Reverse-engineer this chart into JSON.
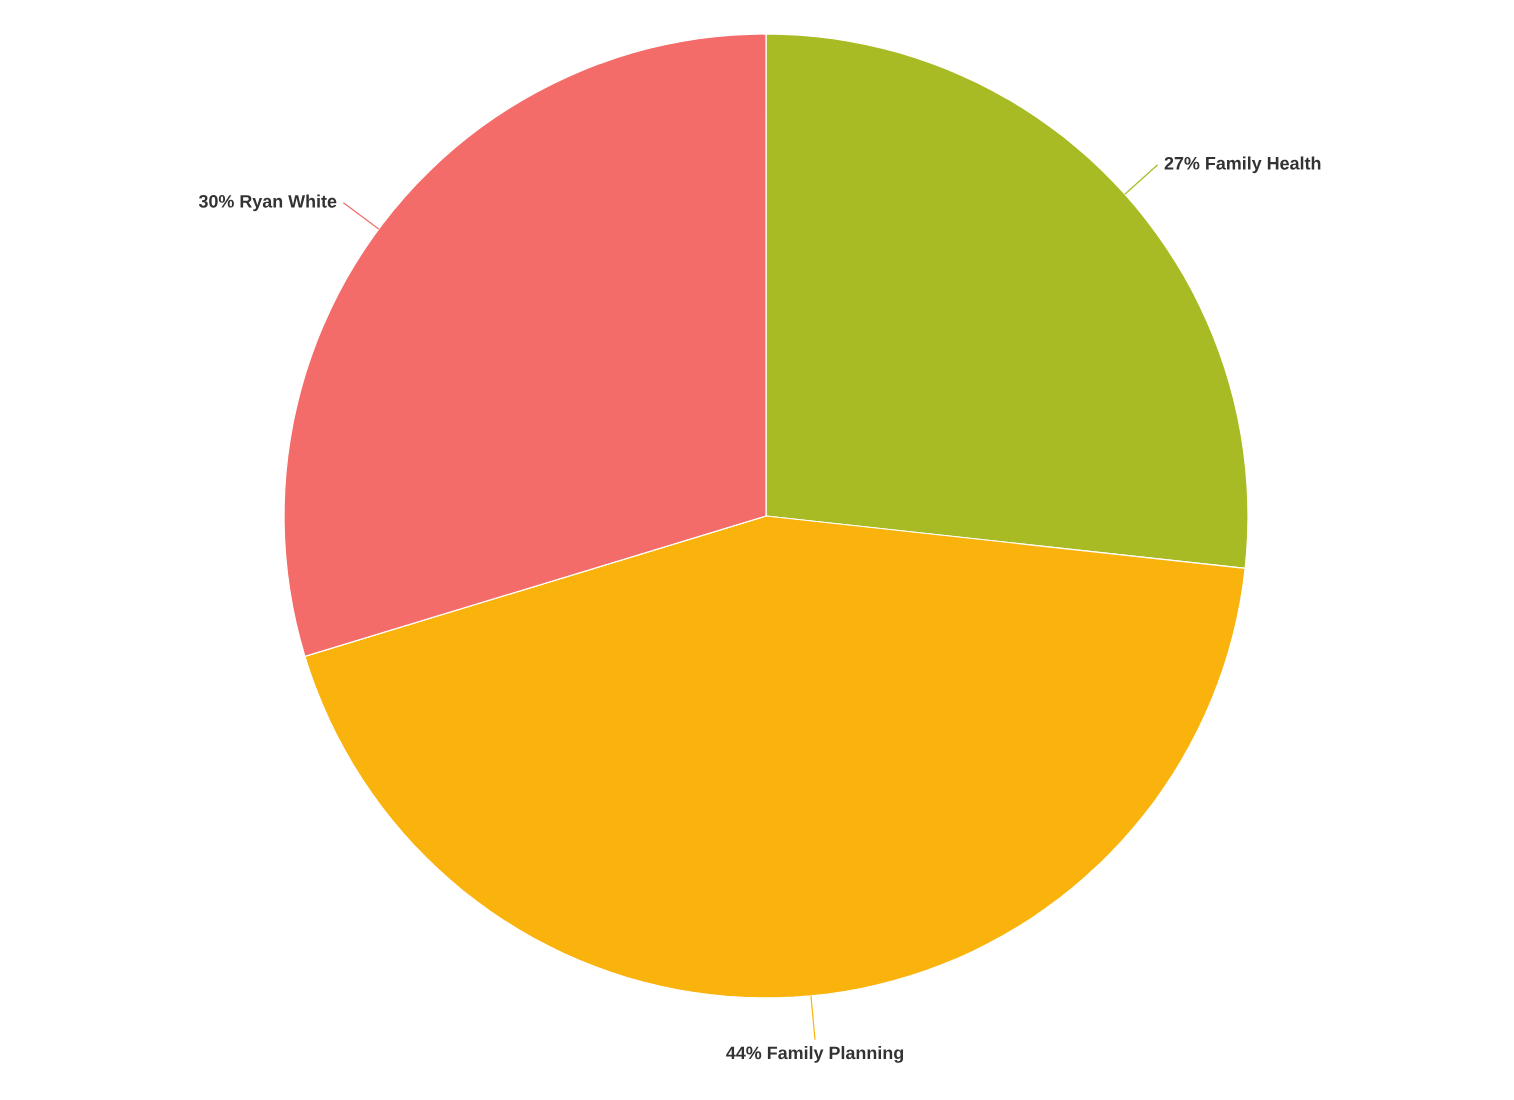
{
  "chart_data": {
    "type": "pie",
    "categories": [
      "Family Health",
      "Family Planning",
      "Ryan White"
    ],
    "values": [
      27,
      44,
      30
    ],
    "colors": [
      "#a9bb24",
      "#fab20c",
      "#f36c6a"
    ],
    "value_labels": [
      "27%",
      "44%",
      "30%"
    ]
  }
}
